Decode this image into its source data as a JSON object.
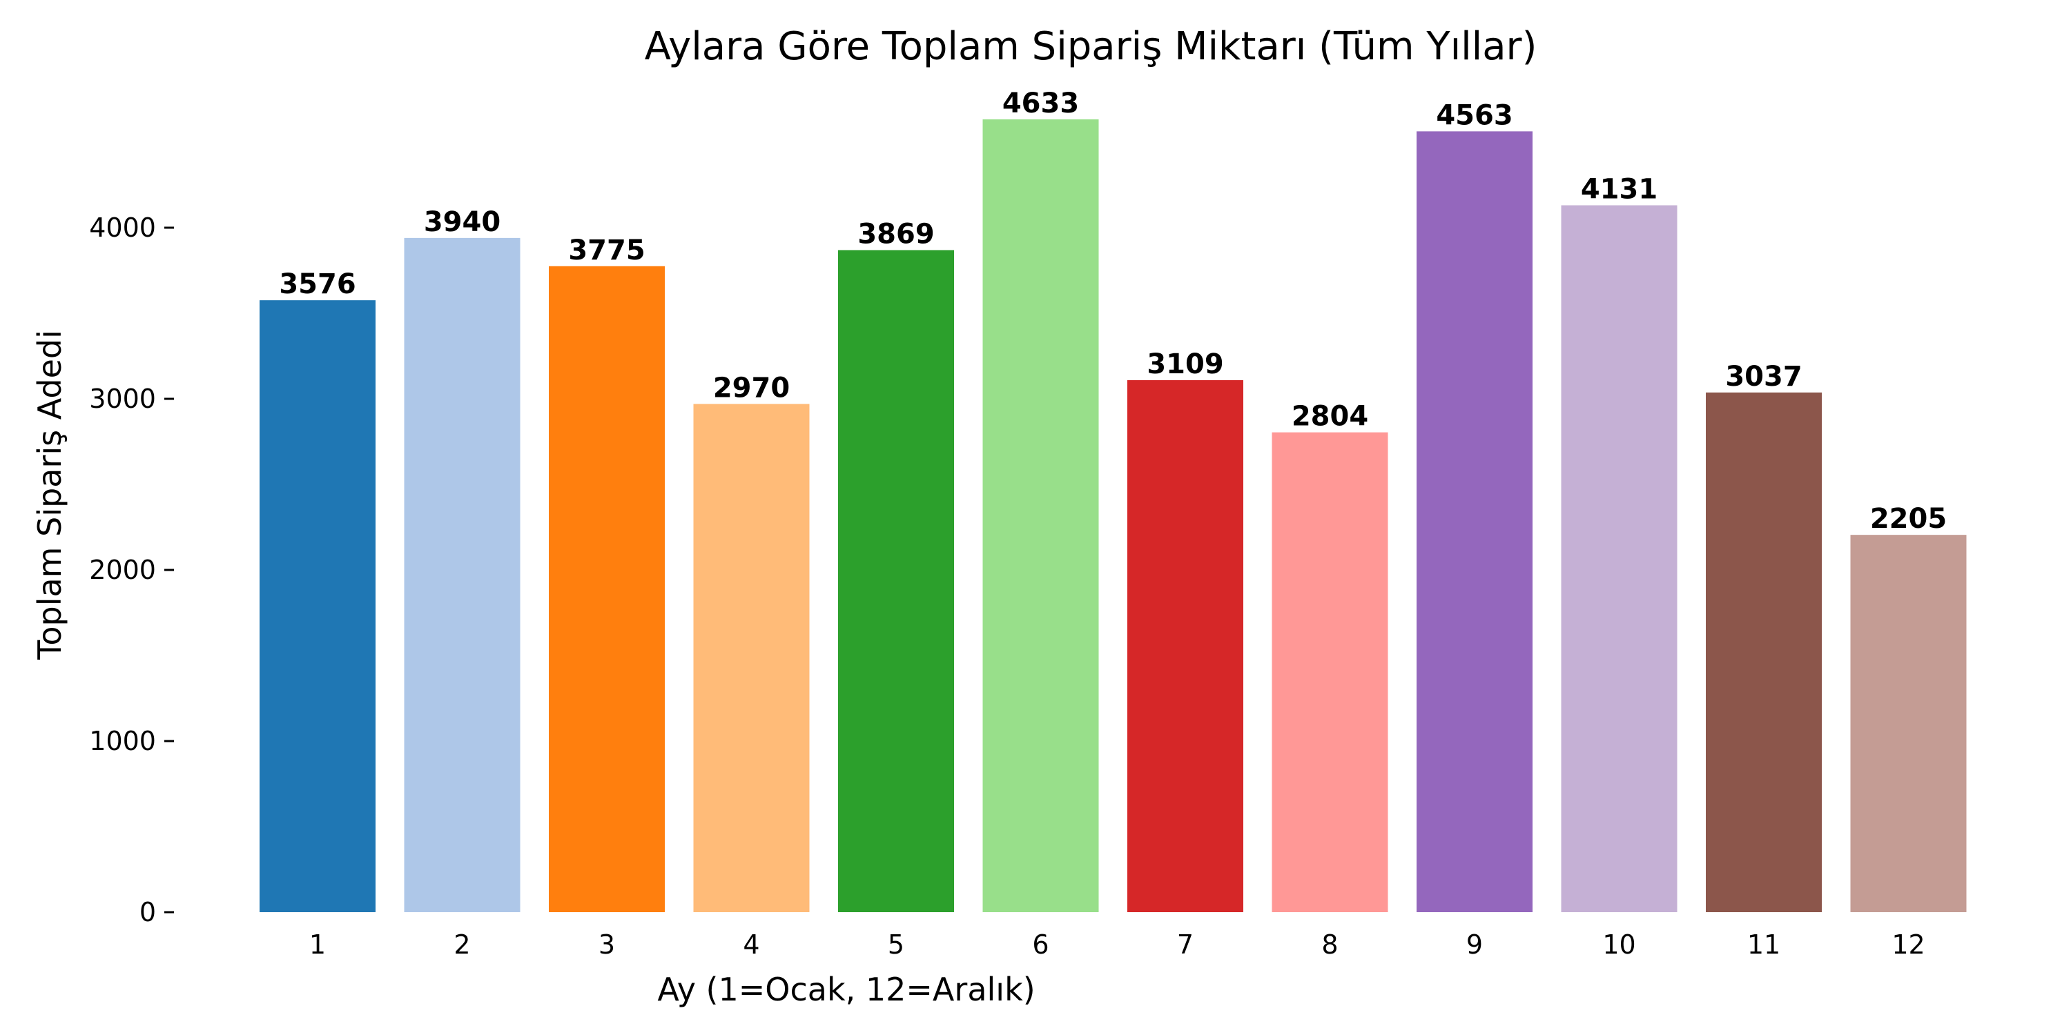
{
  "chart_data": {
    "type": "bar",
    "title": "Aylara Göre Toplam Sipariş Miktarı (Tüm Yıllar)",
    "xlabel": "Ay (1=Ocak, 12=Aralık)",
    "ylabel": "Toplam Sipariş Adedi",
    "categories": [
      "1",
      "2",
      "3",
      "4",
      "5",
      "6",
      "7",
      "8",
      "9",
      "10",
      "11",
      "12"
    ],
    "values": [
      3576,
      3940,
      3775,
      2970,
      3869,
      4633,
      3109,
      2804,
      4563,
      4131,
      3037,
      2205
    ],
    "data_labels": [
      "3576",
      "3940",
      "3775",
      "2970",
      "3869",
      "4633",
      "3109",
      "2804",
      "4563",
      "4131",
      "3037",
      "2205"
    ],
    "colors": [
      "#1f77b4",
      "#aec7e8",
      "#ff7f0e",
      "#ffbb78",
      "#2ca02c",
      "#98df8a",
      "#d62728",
      "#ff9896",
      "#9467bd",
      "#c5b0d5",
      "#8c564b",
      "#c49c94"
    ],
    "yticks": [
      0,
      1000,
      2000,
      3000,
      4000
    ],
    "ytick_labels": [
      "0",
      "1000",
      "2000",
      "3000",
      "4000"
    ],
    "ylim": [
      0,
      4633
    ],
    "grid": false,
    "legend": false
  }
}
